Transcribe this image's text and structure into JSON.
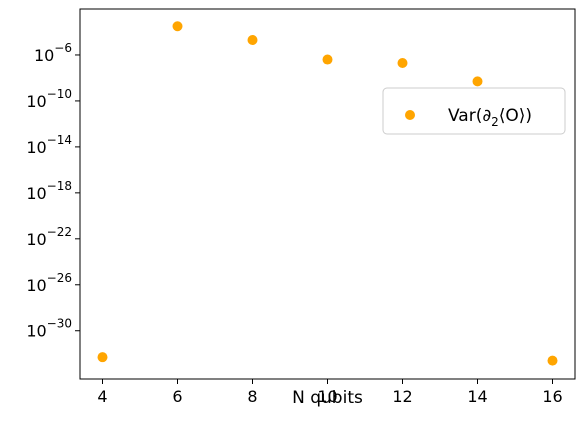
{
  "chart_data": {
    "type": "scatter",
    "xlabel": "N qubits",
    "ylabel": "",
    "y_scale": "log",
    "xlim": [
      3.4,
      16.6
    ],
    "ylim_log10": [
      -34.2,
      -2.0
    ],
    "x_ticks": [
      4,
      6,
      8,
      10,
      12,
      14,
      16
    ],
    "y_ticks": [
      {
        "exp": -30,
        "label": "10",
        "sup": "−30"
      },
      {
        "exp": -26,
        "label": "10",
        "sup": "−26"
      },
      {
        "exp": -22,
        "label": "10",
        "sup": "−22"
      },
      {
        "exp": -18,
        "label": "10",
        "sup": "−18"
      },
      {
        "exp": -14,
        "label": "10",
        "sup": "−14"
      },
      {
        "exp": -10,
        "label": "10",
        "sup": "−10"
      },
      {
        "exp": -6,
        "label": "10",
        "sup": "−6"
      }
    ],
    "grid": false,
    "legend_position": "right",
    "series": [
      {
        "name": "Var(∂₂⟨O⟩)",
        "legend_main": "Var(∂",
        "legend_sub": "2",
        "legend_tail": "⟨O⟩)",
        "color": "#FFA500",
        "x": [
          4,
          6,
          8,
          10,
          12,
          14,
          16
        ],
        "y_log10": [
          -32.3,
          -3.5,
          -4.7,
          -6.4,
          -6.7,
          -8.3,
          -32.6
        ]
      }
    ]
  }
}
